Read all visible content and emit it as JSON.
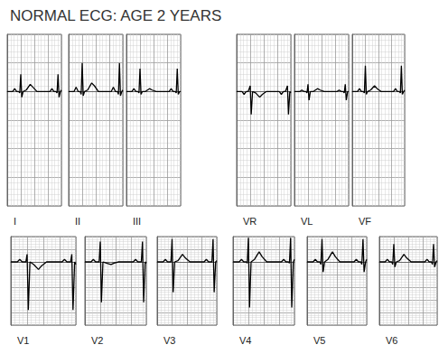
{
  "title": "NORMAL ECG: AGE 2 YEARS",
  "chart_data": [
    {
      "type": "line",
      "title": "I",
      "color": "#000000",
      "grid": true,
      "tick_labels": false,
      "x": [
        0,
        0.05,
        0.08,
        0.11,
        0.14,
        0.17,
        0.185,
        0.2,
        0.215,
        0.235,
        0.28,
        0.34,
        0.38,
        0.44,
        0.55,
        0.6,
        0.63,
        0.66,
        0.69,
        0.72,
        0.735,
        0.75,
        0.765,
        0.785,
        0.8
      ],
      "values": [
        0,
        0,
        0,
        0.1,
        0,
        0,
        -0.05,
        0.6,
        -0.2,
        0,
        0.05,
        0.25,
        0.15,
        0,
        0,
        0,
        0,
        0.1,
        0,
        0,
        -0.05,
        0.6,
        -0.2,
        0,
        0.05
      ],
      "xlim": [
        0,
        0.8
      ],
      "xticks": [
        0,
        0.2,
        0.4,
        0.6,
        0.8
      ],
      "ylim": [
        -4,
        2
      ],
      "yticks": [
        -4,
        -3,
        -2,
        -1,
        0,
        1,
        2
      ]
    },
    {
      "type": "line",
      "title": "II",
      "color": "#000000",
      "grid": true,
      "tick_labels": false,
      "x": [
        0,
        0.05,
        0.08,
        0.11,
        0.14,
        0.17,
        0.185,
        0.2,
        0.215,
        0.235,
        0.28,
        0.34,
        0.38,
        0.44,
        0.55,
        0.6,
        0.63,
        0.66,
        0.69,
        0.72,
        0.735,
        0.75,
        0.765,
        0.785,
        0.8
      ],
      "values": [
        0,
        0,
        0,
        0.15,
        0,
        0,
        -0.1,
        1.0,
        -0.15,
        0,
        0.05,
        0.3,
        0.2,
        0,
        0,
        0,
        0,
        0.15,
        0,
        0,
        -0.1,
        1.0,
        -0.15,
        0,
        0.05
      ],
      "xlim": [
        0,
        0.8
      ],
      "xticks": [
        0,
        0.2,
        0.4,
        0.6,
        0.8
      ],
      "ylim": [
        -4,
        2
      ],
      "yticks": [
        -4,
        -3,
        -2,
        -1,
        0,
        1,
        2
      ]
    },
    {
      "type": "line",
      "title": "III",
      "color": "#000000",
      "grid": true,
      "tick_labels": false,
      "x": [
        0,
        0.05,
        0.08,
        0.11,
        0.14,
        0.17,
        0.185,
        0.2,
        0.215,
        0.235,
        0.28,
        0.34,
        0.38,
        0.44,
        0.55,
        0.6,
        0.63,
        0.66,
        0.69,
        0.72,
        0.735,
        0.75,
        0.765,
        0.785,
        0.8
      ],
      "values": [
        0,
        0,
        0,
        0.1,
        0,
        0,
        -0.05,
        0.8,
        -0.1,
        0,
        0,
        0.1,
        0.05,
        0,
        0,
        0,
        0,
        0.1,
        0,
        0,
        -0.05,
        0.8,
        -0.1,
        0,
        0
      ],
      "xlim": [
        0,
        0.8
      ],
      "xticks": [
        0,
        0.2,
        0.4,
        0.6,
        0.8
      ],
      "ylim": [
        -4,
        2
      ],
      "yticks": [
        -4,
        -3,
        -2,
        -1,
        0,
        1,
        2
      ]
    },
    {
      "type": "line",
      "title": "VR",
      "color": "#000000",
      "grid": true,
      "tick_labels": false,
      "x": [
        0,
        0.05,
        0.08,
        0.11,
        0.14,
        0.17,
        0.185,
        0.2,
        0.215,
        0.235,
        0.28,
        0.34,
        0.38,
        0.44,
        0.55,
        0.6,
        0.63,
        0.66,
        0.69,
        0.72,
        0.735,
        0.75,
        0.765,
        0.785,
        0.8
      ],
      "values": [
        0,
        0,
        0,
        -0.1,
        0,
        0,
        0.1,
        0.2,
        -0.8,
        0,
        -0.05,
        -0.2,
        -0.1,
        0,
        0,
        0,
        0,
        -0.1,
        0,
        0,
        0.1,
        0.2,
        -0.8,
        0,
        -0.05
      ],
      "xlim": [
        0,
        0.8
      ],
      "xticks": [
        0,
        0.2,
        0.4,
        0.6,
        0.8
      ],
      "ylim": [
        -4,
        2
      ],
      "yticks": [
        -4,
        -3,
        -2,
        -1,
        0,
        1,
        2
      ]
    },
    {
      "type": "line",
      "title": "VL",
      "color": "#000000",
      "grid": true,
      "tick_labels": false,
      "x": [
        0,
        0.05,
        0.08,
        0.11,
        0.14,
        0.17,
        0.185,
        0.2,
        0.215,
        0.235,
        0.28,
        0.34,
        0.38,
        0.44,
        0.55,
        0.6,
        0.63,
        0.66,
        0.69,
        0.72,
        0.735,
        0.75,
        0.765,
        0.785,
        0.8
      ],
      "values": [
        0,
        0,
        0,
        0.05,
        0,
        0,
        -0.05,
        0.25,
        -0.3,
        0,
        0,
        0.1,
        0.05,
        0,
        0,
        0,
        0,
        0.05,
        0,
        0,
        -0.05,
        0.25,
        -0.3,
        0,
        0
      ],
      "xlim": [
        0,
        0.8
      ],
      "xticks": [
        0,
        0.2,
        0.4,
        0.6,
        0.8
      ],
      "ylim": [
        -4,
        2
      ],
      "yticks": [
        -4,
        -3,
        -2,
        -1,
        0,
        1,
        2
      ]
    },
    {
      "type": "line",
      "title": "VF",
      "color": "#000000",
      "grid": true,
      "tick_labels": false,
      "x": [
        0,
        0.05,
        0.08,
        0.11,
        0.14,
        0.17,
        0.185,
        0.2,
        0.215,
        0.235,
        0.28,
        0.34,
        0.38,
        0.44,
        0.55,
        0.6,
        0.63,
        0.66,
        0.69,
        0.72,
        0.735,
        0.75,
        0.765,
        0.785,
        0.8
      ],
      "values": [
        0,
        0,
        0,
        0.1,
        0,
        0,
        -0.05,
        0.9,
        -0.1,
        0,
        0.05,
        0.2,
        0.1,
        0,
        0,
        0,
        0,
        0.1,
        0,
        0,
        -0.05,
        0.9,
        -0.1,
        0,
        0.05
      ],
      "xlim": [
        0,
        0.8
      ],
      "xticks": [
        0,
        0.2,
        0.4,
        0.6,
        0.8
      ],
      "ylim": [
        -4,
        2
      ],
      "yticks": [
        -4,
        -3,
        -2,
        -1,
        0,
        1,
        2
      ]
    },
    {
      "type": "line",
      "title": "V1",
      "color": "#000000",
      "grid": true,
      "tick_labels": false,
      "x": [
        0,
        0.05,
        0.08,
        0.11,
        0.14,
        0.17,
        0.185,
        0.2,
        0.215,
        0.235,
        0.28,
        0.34,
        0.38,
        0.44,
        0.55,
        0.6,
        0.63,
        0.66,
        0.69,
        0.72,
        0.735,
        0.75,
        0.765,
        0.785,
        0.8
      ],
      "values": [
        0,
        0,
        0,
        0.1,
        0,
        0,
        0,
        0.3,
        -1.9,
        0,
        -0.1,
        -0.3,
        -0.15,
        0,
        0,
        0,
        0,
        0.1,
        0,
        0,
        0,
        0.3,
        -1.9,
        0,
        -0.1
      ],
      "xlim": [
        0,
        0.8
      ],
      "xticks": [
        0,
        0.2,
        0.4,
        0.6,
        0.8
      ],
      "ylim": [
        -2.5,
        1
      ],
      "yticks": [
        -2.5,
        -2,
        -1.5,
        -1,
        -0.5,
        0,
        0.5,
        1
      ]
    },
    {
      "type": "line",
      "title": "V2",
      "color": "#000000",
      "grid": true,
      "tick_labels": false,
      "x": [
        0,
        0.05,
        0.08,
        0.11,
        0.14,
        0.17,
        0.185,
        0.2,
        0.215,
        0.235,
        0.28,
        0.34,
        0.38,
        0.44,
        0.55,
        0.6,
        0.63,
        0.66,
        0.69,
        0.72,
        0.735,
        0.75,
        0.765,
        0.785,
        0.8
      ],
      "values": [
        0,
        0,
        0,
        0.1,
        0,
        0,
        0,
        0.8,
        -1.6,
        0,
        -0.05,
        -0.1,
        -0.05,
        0,
        0,
        0,
        0,
        0.1,
        0,
        0,
        0,
        0.8,
        -1.6,
        0,
        -0.05
      ],
      "xlim": [
        0,
        0.8
      ],
      "xticks": [
        0,
        0.2,
        0.4,
        0.6,
        0.8
      ],
      "ylim": [
        -2.5,
        1
      ],
      "yticks": [
        -2.5,
        -2,
        -1.5,
        -1,
        -0.5,
        0,
        0.5,
        1
      ]
    },
    {
      "type": "line",
      "title": "V3",
      "color": "#000000",
      "grid": true,
      "tick_labels": false,
      "x": [
        0,
        0.05,
        0.08,
        0.11,
        0.14,
        0.17,
        0.185,
        0.2,
        0.215,
        0.235,
        0.28,
        0.34,
        0.38,
        0.44,
        0.55,
        0.6,
        0.63,
        0.66,
        0.69,
        0.72,
        0.735,
        0.75,
        0.765,
        0.785,
        0.8
      ],
      "values": [
        0,
        0,
        0,
        0.1,
        0,
        0,
        0,
        0.9,
        -1.2,
        0,
        0.05,
        0.3,
        0.15,
        0,
        0,
        0,
        0,
        0.1,
        0,
        0,
        0,
        0.9,
        -1.2,
        0,
        0.05
      ],
      "xlim": [
        0,
        0.8
      ],
      "xticks": [
        0,
        0.2,
        0.4,
        0.6,
        0.8
      ],
      "ylim": [
        -2.5,
        1
      ],
      "yticks": [
        -2.5,
        -2,
        -1.5,
        -1,
        -0.5,
        0,
        0.5,
        1
      ]
    },
    {
      "type": "line",
      "title": "V4",
      "color": "#000000",
      "grid": true,
      "tick_labels": false,
      "x": [
        0,
        0.05,
        0.08,
        0.11,
        0.14,
        0.17,
        0.185,
        0.2,
        0.215,
        0.235,
        0.28,
        0.34,
        0.38,
        0.44,
        0.55,
        0.6,
        0.63,
        0.66,
        0.69,
        0.72,
        0.735,
        0.75,
        0.765,
        0.785,
        0.8
      ],
      "values": [
        0,
        0,
        0,
        0.1,
        0,
        0,
        -0.05,
        0.95,
        -1.8,
        0,
        0.1,
        0.4,
        0.2,
        0,
        0,
        0,
        0,
        0.1,
        0,
        0,
        -0.05,
        0.95,
        -1.8,
        0,
        0.1
      ],
      "xlim": [
        0,
        0.8
      ],
      "xticks": [
        0,
        0.2,
        0.4,
        0.6,
        0.8
      ],
      "ylim": [
        -2.5,
        1
      ],
      "yticks": [
        -2.5,
        -2,
        -1.5,
        -1,
        -0.5,
        0,
        0.5,
        1
      ]
    },
    {
      "type": "line",
      "title": "V5",
      "color": "#000000",
      "grid": true,
      "tick_labels": false,
      "x": [
        0,
        0.05,
        0.08,
        0.11,
        0.14,
        0.17,
        0.185,
        0.2,
        0.215,
        0.235,
        0.28,
        0.34,
        0.38,
        0.44,
        0.55,
        0.6,
        0.63,
        0.66,
        0.69,
        0.72,
        0.735,
        0.75,
        0.765,
        0.785,
        0.8
      ],
      "values": [
        0,
        0,
        0,
        0.1,
        0,
        0,
        -0.1,
        0.9,
        -0.4,
        0,
        0.1,
        0.4,
        0.2,
        0,
        0,
        0,
        0,
        0.1,
        0,
        0,
        -0.1,
        0.9,
        -0.4,
        0,
        0.1
      ],
      "xlim": [
        0,
        0.8
      ],
      "xticks": [
        0,
        0.2,
        0.4,
        0.6,
        0.8
      ],
      "ylim": [
        -2.5,
        1
      ],
      "yticks": [
        -2.5,
        -2,
        -1.5,
        -1,
        -0.5,
        0,
        0.5,
        1
      ]
    },
    {
      "type": "line",
      "title": "V6",
      "color": "#000000",
      "grid": true,
      "tick_labels": false,
      "x": [
        0,
        0.05,
        0.08,
        0.11,
        0.14,
        0.17,
        0.185,
        0.2,
        0.215,
        0.235,
        0.28,
        0.34,
        0.38,
        0.44,
        0.55,
        0.6,
        0.63,
        0.66,
        0.69,
        0.72,
        0.735,
        0.75,
        0.765,
        0.785,
        0.8
      ],
      "values": [
        0,
        0,
        0,
        0.1,
        0,
        0,
        -0.1,
        0.7,
        -0.2,
        0,
        0.05,
        0.3,
        0.15,
        0,
        0,
        0,
        0,
        0.1,
        0,
        0,
        -0.1,
        0.7,
        -0.2,
        0,
        0.05
      ],
      "xlim": [
        0,
        0.8
      ],
      "xticks": [
        0,
        0.2,
        0.4,
        0.6,
        0.8
      ],
      "ylim": [
        -2.5,
        1
      ],
      "yticks": [
        -2.5,
        -2,
        -1.5,
        -1,
        -0.5,
        0,
        0.5,
        1
      ]
    }
  ]
}
